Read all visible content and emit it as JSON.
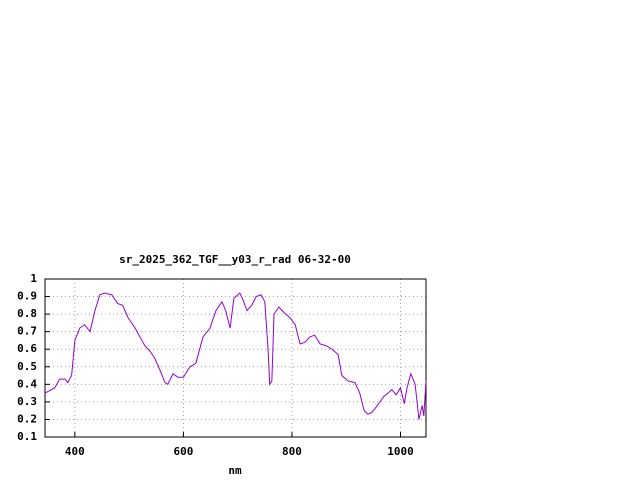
{
  "chart_data": {
    "type": "line",
    "title": "sr_2025_362_TGF__y03_r_rad 06-32-00",
    "x_label": "nm",
    "x": [
      345,
      363,
      372,
      382,
      387,
      394,
      400,
      409,
      418,
      428,
      437,
      446,
      455,
      468,
      479,
      488,
      498,
      511,
      520,
      529,
      538,
      547,
      557,
      566,
      571,
      581,
      590,
      600,
      612,
      623,
      636,
      649,
      660,
      671,
      678,
      686,
      693,
      704,
      710,
      717,
      726,
      734,
      743,
      750,
      756,
      759,
      763,
      767,
      776,
      785,
      796,
      806,
      815,
      824,
      833,
      842,
      852,
      863,
      874,
      885,
      892,
      903,
      916,
      925,
      933,
      940,
      947,
      955,
      962,
      969,
      977,
      984,
      992,
      1000,
      1007,
      1012,
      1019,
      1027,
      1034,
      1040,
      1043,
      1047
    ],
    "series": [
      {
        "color": "#9400d3",
        "values": [
          0.35,
          0.38,
          0.43,
          0.43,
          0.41,
          0.45,
          0.65,
          0.72,
          0.74,
          0.7,
          0.82,
          0.91,
          0.92,
          0.91,
          0.86,
          0.85,
          0.78,
          0.72,
          0.67,
          0.62,
          0.59,
          0.55,
          0.48,
          0.41,
          0.4,
          0.46,
          0.44,
          0.44,
          0.5,
          0.52,
          0.67,
          0.72,
          0.82,
          0.87,
          0.82,
          0.72,
          0.89,
          0.92,
          0.88,
          0.82,
          0.85,
          0.9,
          0.91,
          0.87,
          0.6,
          0.4,
          0.42,
          0.8,
          0.84,
          0.81,
          0.78,
          0.74,
          0.63,
          0.64,
          0.67,
          0.68,
          0.63,
          0.62,
          0.6,
          0.57,
          0.45,
          0.42,
          0.41,
          0.35,
          0.25,
          0.23,
          0.24,
          0.27,
          0.3,
          0.33,
          0.35,
          0.37,
          0.34,
          0.38,
          0.29,
          0.38,
          0.46,
          0.4,
          0.2,
          0.28,
          0.22,
          0.42
        ]
      }
    ],
    "xlim": [
      345,
      1047
    ],
    "xticks": [
      400,
      600,
      800,
      1000
    ],
    "ylim": [
      0.1,
      1
    ],
    "yticks": [
      0.1,
      0.2,
      0.3,
      0.4,
      0.5,
      0.6,
      0.7,
      0.8,
      0.9,
      1
    ],
    "grid": true
  }
}
